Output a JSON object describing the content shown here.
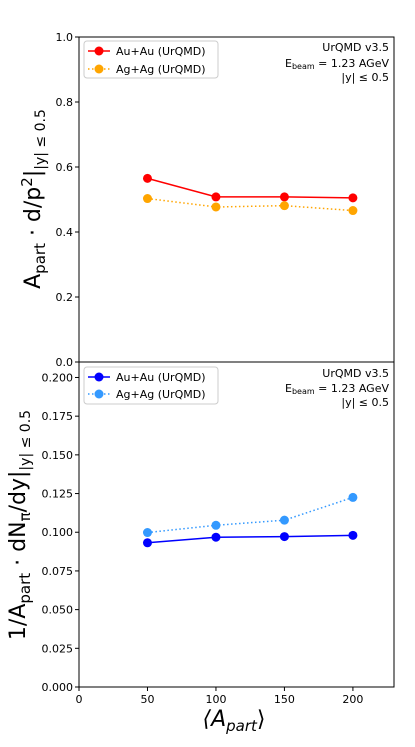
{
  "chart_data": [
    {
      "type": "line",
      "ylabel_main": "A",
      "ylabel_sub": "part",
      "ylabel_rest": " · d/p",
      "ylabel_sup": "2",
      "ylabel_cond": "|",
      "ylabel_cond_sub": "|y| ≤ 0.5",
      "xlim": [
        0,
        230
      ],
      "ylim": [
        0.0,
        1.0
      ],
      "yticks": [
        "0.0",
        "0.2",
        "0.4",
        "0.6",
        "0.8",
        "1.0"
      ],
      "ytick_values": [
        0.0,
        0.2,
        0.4,
        0.6,
        0.8,
        1.0
      ],
      "grid": false,
      "legend_position": "upper-left",
      "annotation": {
        "line1": "UrQMD v3.5",
        "line2_main": "E",
        "line2_sub": "beam",
        "line2_rest": " = 1.23 AGeV",
        "line3": "|y| ≤ 0.5"
      },
      "series": [
        {
          "name": "Au+Au (UrQMD)",
          "color": "#ff0000",
          "style": "solid",
          "x": [
            50,
            100,
            150,
            200
          ],
          "y": [
            0.565,
            0.508,
            0.508,
            0.505
          ]
        },
        {
          "name": "Ag+Ag (UrQMD)",
          "color": "#ffa500",
          "style": "dotted",
          "x": [
            50,
            100,
            150,
            200
          ],
          "y": [
            0.503,
            0.477,
            0.481,
            0.466
          ]
        }
      ]
    },
    {
      "type": "line",
      "ylabel_main": "1/A",
      "ylabel_sub": "part",
      "ylabel_rest": " · dN",
      "ylabel_sub2": "π",
      "ylabel_rest2": "/dy",
      "ylabel_cond": "|",
      "ylabel_cond_sub": "|y| ≤ 0.5",
      "xlabel_main": "⟨A",
      "xlabel_sub": "part",
      "xlabel_end": "⟩",
      "xlim": [
        0,
        230
      ],
      "ylim": [
        0.0,
        0.21
      ],
      "xticks": [
        "0",
        "50",
        "100",
        "150",
        "200"
      ],
      "xtick_values": [
        0,
        50,
        100,
        150,
        200
      ],
      "yticks": [
        "0.000",
        "0.025",
        "0.050",
        "0.075",
        "0.100",
        "0.125",
        "0.150",
        "0.175",
        "0.200"
      ],
      "ytick_values": [
        0.0,
        0.025,
        0.05,
        0.075,
        0.1,
        0.125,
        0.15,
        0.175,
        0.2
      ],
      "grid": false,
      "legend_position": "upper-left",
      "annotation": {
        "line1": "UrQMD v3.5",
        "line2_main": "E",
        "line2_sub": "beam",
        "line2_rest": " = 1.23 AGeV",
        "line3": "|y| ≤ 0.5"
      },
      "series": [
        {
          "name": "Au+Au (UrQMD)",
          "color": "#0000ff",
          "style": "solid",
          "x": [
            50,
            100,
            150,
            200
          ],
          "y": [
            0.0932,
            0.0968,
            0.0972,
            0.098
          ]
        },
        {
          "name": "Ag+Ag (UrQMD)",
          "color": "#3399ff",
          "style": "dotted",
          "x": [
            50,
            100,
            150,
            200
          ],
          "y": [
            0.0998,
            0.1045,
            0.1078,
            0.1225
          ]
        }
      ]
    }
  ]
}
